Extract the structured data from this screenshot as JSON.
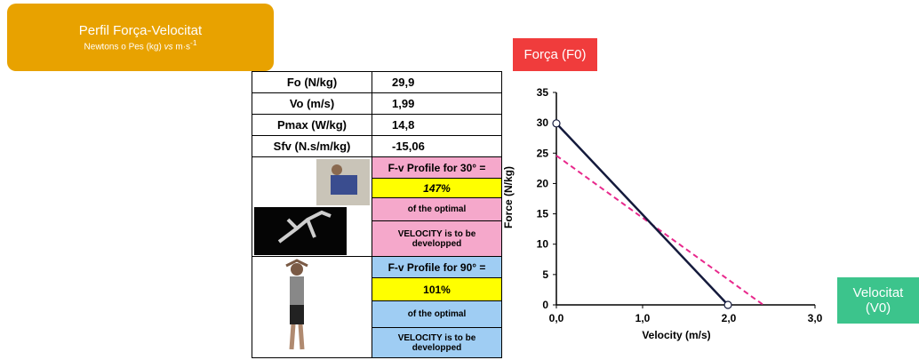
{
  "header": {
    "title": "Perfil Força-Velocitat",
    "subtitle_parts": [
      "Newtons o Pes (kg) ",
      "vs",
      " m·s",
      "-1"
    ]
  },
  "table": {
    "rows": [
      [
        "Fo (N/kg)",
        "29,9"
      ],
      [
        "Vo (m/s)",
        "1,99"
      ],
      [
        "Pmax (W/kg)",
        "14,8"
      ],
      [
        "Sfv (N.s/m/kg)",
        "-15,06"
      ]
    ],
    "profiles": [
      {
        "title": "F-v Profile for 30° =",
        "percent": "147%",
        "note": "of the optimal",
        "advice": "VELOCITY is to be developped"
      },
      {
        "title": "F-v Profile for 90° =",
        "percent": "101%",
        "note": "of the optimal",
        "advice": "VELOCITY is to be developped"
      }
    ]
  },
  "chart_data": {
    "type": "line",
    "xlabel": "Velocity (m/s)",
    "ylabel": "Force (N/kg)",
    "xlim": [
      0,
      3
    ],
    "xticks": [
      {
        "value": 0,
        "label": "0,0"
      },
      {
        "value": 1,
        "label": "1,0"
      },
      {
        "value": 2,
        "label": "2,0"
      },
      {
        "value": 3,
        "label": "3,0"
      }
    ],
    "ylim": [
      0,
      35
    ],
    "yticks": [
      0,
      5,
      10,
      15,
      20,
      25,
      30,
      35
    ],
    "series": [
      {
        "color": "#141a3c",
        "x": [
          0,
          1.99
        ],
        "values": [
          29.9,
          0
        ],
        "marker": "open-circle",
        "dash": "solid"
      },
      {
        "color": "#e8288c",
        "x": [
          0,
          2.4
        ],
        "values": [
          24.6,
          0
        ],
        "dash": "dashed"
      }
    ],
    "annotations": [
      {
        "text": "Força (F0)",
        "color": "#f03c3c"
      },
      {
        "text": "Velocitat (V0)",
        "color": "#3cc48c"
      }
    ]
  }
}
